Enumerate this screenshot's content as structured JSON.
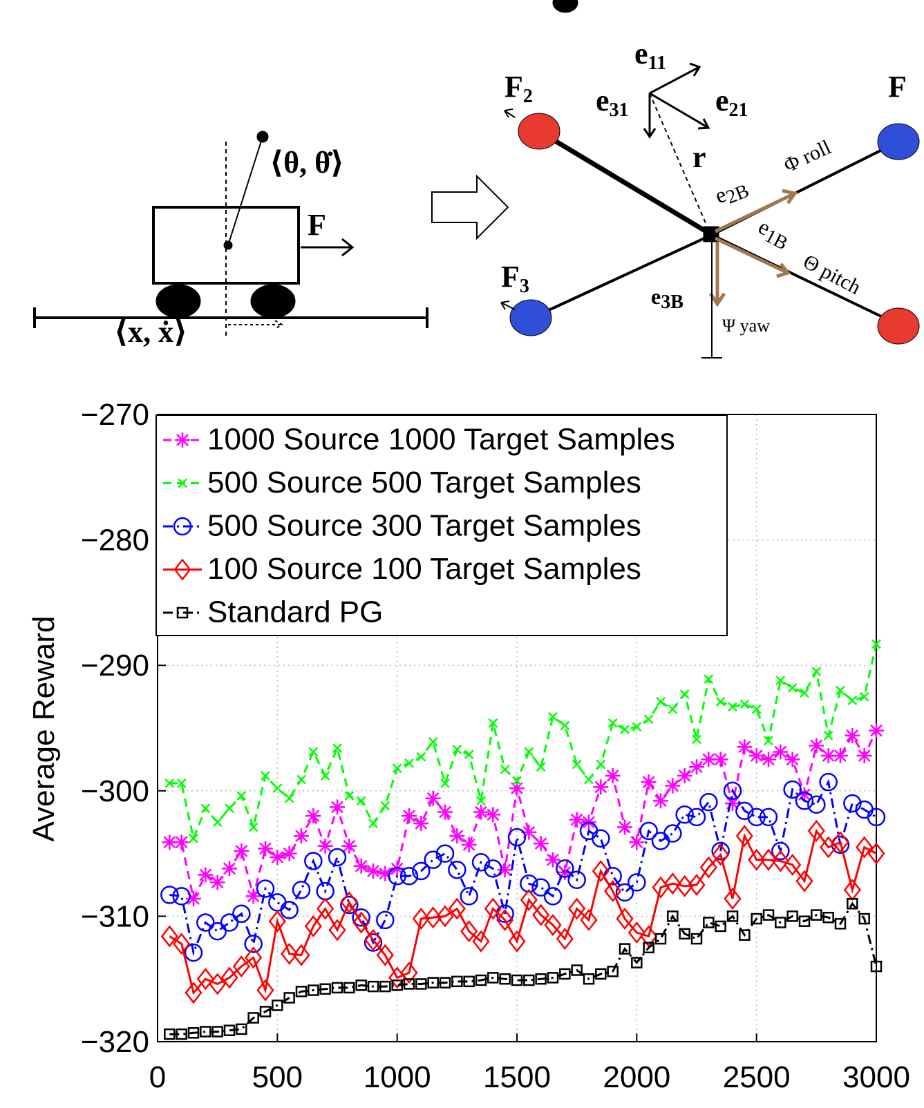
{
  "diagram": {
    "cart_state_angle": "⟨θ, θ̇⟩",
    "cart_force": "F",
    "cart_state_position": "⟨x, ẋ⟩",
    "labels": [
      {
        "base": "F",
        "sub": "2"
      },
      {
        "base": "F",
        "sub": "3"
      },
      {
        "base": "e",
        "sub": "11"
      },
      {
        "base": "e",
        "sub": "31"
      },
      {
        "base": "e",
        "sub": "21"
      },
      {
        "base": "r",
        "sub": ""
      },
      {
        "base": "e",
        "sub": "2B"
      },
      {
        "base": "e",
        "sub": "1B"
      },
      {
        "base": "e",
        "sub": "3B"
      },
      {
        "base": "F",
        "sub": ""
      }
    ],
    "roll": "Φ roll",
    "pitch": "Θ pitch",
    "yaw": "Ψ yaw"
  },
  "chart_data": {
    "type": "line",
    "y_label": "Average Reward",
    "xlim": [
      0,
      3000
    ],
    "ylim": [
      -320,
      -270
    ],
    "xticks": [
      0,
      500,
      1000,
      1500,
      2000,
      2500,
      3000
    ],
    "yticks": [
      {
        "value": -320,
        "label": "−320"
      },
      {
        "value": -310,
        "label": "−310"
      },
      {
        "value": -300,
        "label": "−300"
      },
      {
        "value": -290,
        "label": "−290"
      },
      {
        "value": -280,
        "label": "−280"
      },
      {
        "value": -270,
        "label": "−270"
      }
    ],
    "grid": true,
    "legend": "upper-left",
    "x": [
      50,
      100,
      150,
      200,
      250,
      300,
      350,
      400,
      450,
      500,
      550,
      600,
      650,
      700,
      750,
      800,
      850,
      900,
      950,
      1000,
      1050,
      1100,
      1150,
      1200,
      1250,
      1300,
      1350,
      1400,
      1450,
      1500,
      1550,
      1600,
      1650,
      1700,
      1750,
      1800,
      1850,
      1900,
      1950,
      2000,
      2050,
      2100,
      2150,
      2200,
      2250,
      2300,
      2350,
      2400,
      2450,
      2500,
      2550,
      2600,
      2650,
      2700,
      2750,
      2800,
      2850,
      2900,
      2950,
      3000
    ],
    "series": [
      {
        "name": "1000 Source 1000 Target Samples",
        "color": "#ff00ff",
        "line_style": "--",
        "marker": "star",
        "values": [
          -304.1,
          -304.1,
          -308.6,
          -306.7,
          -307.3,
          -306.2,
          -304.8,
          -308.4,
          -304.6,
          -305.3,
          -305.0,
          -303.6,
          -302.0,
          -304.4,
          -301.3,
          -304.4,
          -306.0,
          -306.4,
          -306.6,
          -306.2,
          -302.0,
          -302.6,
          -300.6,
          -301.7,
          -303.6,
          -304.3,
          -301.7,
          -301.9,
          -306.3,
          -299.8,
          -303.3,
          -304.2,
          -305.5,
          -306.5,
          -302.3,
          -302.5,
          -299.7,
          -298.8,
          -302.9,
          -304.1,
          -299.3,
          -300.8,
          -299.6,
          -298.8,
          -298.1,
          -297.5,
          -297.5,
          -301.0,
          -296.5,
          -297.2,
          -297.5,
          -296.9,
          -297.5,
          -300.3,
          -296.4,
          -297.2,
          -297.2,
          -295.6,
          -297.2,
          -295.2
        ]
      },
      {
        "name": "500 Source 500 Target Samples",
        "color": "#00ff00",
        "line_style": "--",
        "marker": "x",
        "values": [
          -299.4,
          -299.4,
          -303.8,
          -301.4,
          -302.5,
          -301.4,
          -300.4,
          -302.9,
          -298.8,
          -299.8,
          -300.6,
          -299.1,
          -296.9,
          -298.8,
          -296.6,
          -300.4,
          -300.8,
          -302.6,
          -301.2,
          -298.2,
          -297.8,
          -297.3,
          -296.1,
          -299.4,
          -296.7,
          -297.1,
          -300.8,
          -294.6,
          -298.3,
          -299.2,
          -296.9,
          -298.1,
          -294.1,
          -294.8,
          -297.9,
          -299.1,
          -297.9,
          -294.6,
          -295.1,
          -294.9,
          -294.3,
          -292.9,
          -293.5,
          -292.3,
          -295.9,
          -291.1,
          -292.9,
          -293.3,
          -293.1,
          -293.5,
          -296.0,
          -291.2,
          -291.8,
          -292.2,
          -290.5,
          -295.6,
          -292.0,
          -292.8,
          -292.5,
          -288.3
        ]
      },
      {
        "name": "500 Source 300 Target Samples",
        "color": "#0000ff",
        "line_style": "-.",
        "marker": "circle",
        "values": [
          -308.3,
          -308.4,
          -312.9,
          -310.5,
          -311.2,
          -310.5,
          -309.8,
          -312.2,
          -307.8,
          -308.9,
          -309.5,
          -307.9,
          -305.6,
          -308.0,
          -305.3,
          -309.1,
          -310.1,
          -312.1,
          -310.3,
          -306.8,
          -306.8,
          -306.4,
          -305.5,
          -305.0,
          -306.3,
          -308.4,
          -305.7,
          -306.2,
          -309.8,
          -303.7,
          -307.4,
          -307.7,
          -308.4,
          -306.2,
          -307.1,
          -303.2,
          -303.8,
          -306.8,
          -308.1,
          -307.3,
          -303.2,
          -304.0,
          -303.4,
          -301.9,
          -302.1,
          -300.9,
          -304.8,
          -300.0,
          -301.6,
          -302.1,
          -302.1,
          -304.8,
          -299.9,
          -300.8,
          -301.1,
          -299.3,
          -304.3,
          -301.0,
          -301.5,
          -302.1
        ]
      },
      {
        "name": "100 Source 100 Target Samples",
        "color": "#ff0000",
        "line_style": "-",
        "marker": "diamond",
        "values": [
          -311.6,
          -312.2,
          -316.1,
          -315.0,
          -315.4,
          -314.9,
          -314.0,
          -313.3,
          -315.9,
          -310.4,
          -313.0,
          -313.1,
          -310.8,
          -309.4,
          -311.1,
          -308.9,
          -310.5,
          -311.9,
          -313.1,
          -314.9,
          -314.5,
          -310.2,
          -310.1,
          -310.0,
          -309.4,
          -311.2,
          -312.0,
          -309.4,
          -310.3,
          -312.0,
          -308.7,
          -309.9,
          -310.7,
          -311.8,
          -309.4,
          -310.3,
          -306.4,
          -308.0,
          -310.2,
          -311.3,
          -311.6,
          -307.7,
          -307.4,
          -307.6,
          -307.5,
          -306.1,
          -305.1,
          -308.6,
          -303.6,
          -305.5,
          -305.5,
          -305.6,
          -305.9,
          -307.2,
          -303.2,
          -304.5,
          -304.1,
          -307.9,
          -304.5,
          -305.0
        ]
      },
      {
        "name": "Standard PG",
        "color": "#000000",
        "line_style": "-.",
        "marker": "square",
        "values": [
          -319.4,
          -319.4,
          -319.3,
          -319.2,
          -319.2,
          -319.1,
          -319.0,
          -318.1,
          -317.6,
          -317.1,
          -316.5,
          -316.0,
          -315.9,
          -315.8,
          -315.7,
          -315.7,
          -315.5,
          -315.6,
          -315.6,
          -315.5,
          -315.4,
          -315.4,
          -315.3,
          -315.3,
          -315.2,
          -315.2,
          -315.1,
          -314.9,
          -315.0,
          -315.1,
          -315.1,
          -315.0,
          -314.9,
          -314.6,
          -314.3,
          -315.0,
          -314.6,
          -314.4,
          -312.6,
          -313.7,
          -312.5,
          -311.8,
          -310.0,
          -311.4,
          -311.8,
          -310.5,
          -310.8,
          -310.0,
          -311.5,
          -310.2,
          -309.9,
          -310.5,
          -310.0,
          -310.4,
          -309.9,
          -310.1,
          -310.6,
          -309.0,
          -310.2,
          -314.0
        ]
      }
    ]
  }
}
